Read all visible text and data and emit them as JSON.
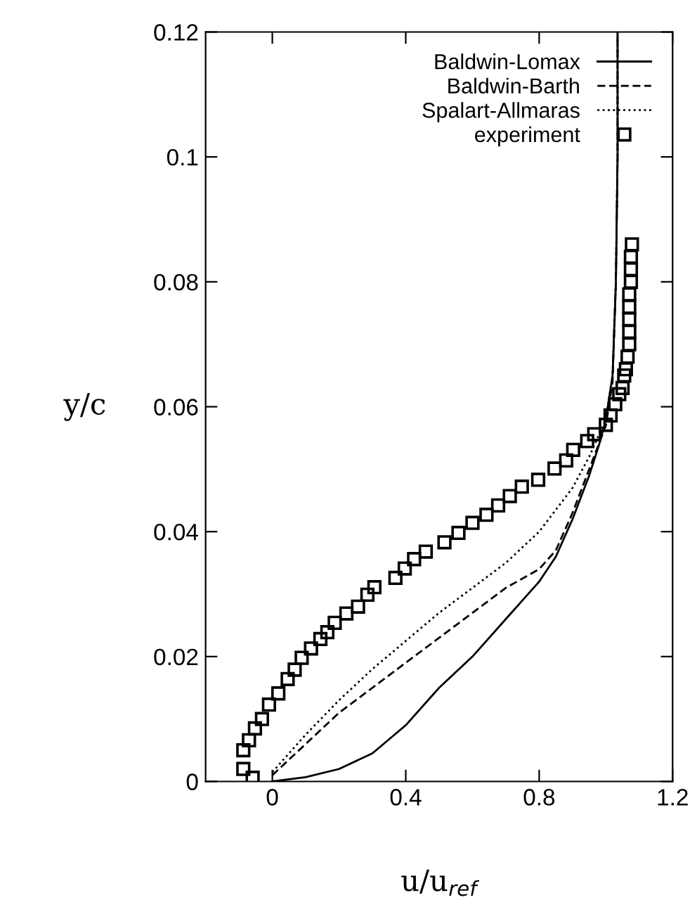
{
  "chart_data": {
    "type": "line",
    "xlabel": "u/u$_{ref}$",
    "ylabel": "y/c",
    "xlim": [
      -0.2,
      1.2
    ],
    "ylim": [
      0,
      0.12
    ],
    "xticks": [
      0,
      0.4,
      0.8,
      1.2
    ],
    "yticks": [
      0,
      0.02,
      0.04,
      0.06,
      0.08,
      0.1,
      0.12
    ],
    "legend": "top right",
    "grid": false,
    "series": [
      {
        "name": "Baldwin-Lomax",
        "color": "#000000",
        "line_style": "solid",
        "marker": "none",
        "x": [
          0,
          0.1,
          0.2,
          0.3,
          0.4,
          0.5,
          0.6,
          0.7,
          0.8,
          0.85,
          0.9,
          0.95,
          0.98,
          1.0,
          1.02,
          1.03,
          1.035,
          1.035
        ],
        "values": [
          0,
          0.0007,
          0.002,
          0.0045,
          0.009,
          0.015,
          0.02,
          0.026,
          0.032,
          0.036,
          0.042,
          0.049,
          0.054,
          0.058,
          0.065,
          0.08,
          0.1,
          0.12
        ]
      },
      {
        "name": "Baldwin-Barth",
        "color": "#000000",
        "line_style": "dashed",
        "marker": "none",
        "x": [
          0,
          0.1,
          0.2,
          0.3,
          0.4,
          0.5,
          0.6,
          0.7,
          0.8,
          0.85,
          0.9,
          0.95,
          1.0,
          1.02,
          1.03,
          1.035,
          1.035
        ],
        "values": [
          0.001,
          0.006,
          0.011,
          0.015,
          0.019,
          0.023,
          0.027,
          0.031,
          0.034,
          0.037,
          0.043,
          0.05,
          0.057,
          0.064,
          0.08,
          0.1,
          0.12
        ]
      },
      {
        "name": "Spalart-Allmaras",
        "color": "#000000",
        "line_style": "dotted",
        "marker": "none",
        "x": [
          0,
          0.1,
          0.2,
          0.3,
          0.4,
          0.5,
          0.6,
          0.7,
          0.8,
          0.9,
          0.95,
          1.0,
          1.02,
          1.03,
          1.035,
          1.035
        ],
        "values": [
          0.0015,
          0.0075,
          0.013,
          0.018,
          0.0225,
          0.027,
          0.031,
          0.035,
          0.04,
          0.047,
          0.052,
          0.058,
          0.065,
          0.08,
          0.1,
          0.12
        ]
      },
      {
        "name": "experiment",
        "type": "scatter",
        "color": "#000000",
        "marker": "square",
        "x": [
          -0.059,
          -0.087,
          -0.087,
          -0.07,
          -0.052,
          -0.031,
          -0.01,
          0.018,
          0.046,
          0.067,
          0.088,
          0.116,
          0.144,
          0.165,
          0.187,
          0.222,
          0.257,
          0.285,
          0.306,
          0.369,
          0.397,
          0.425,
          0.46,
          0.516,
          0.558,
          0.6,
          0.642,
          0.677,
          0.712,
          0.748,
          0.797,
          0.846,
          0.881,
          0.902,
          0.944,
          0.965,
          1.0,
          1.014,
          1.028,
          1.04,
          1.05,
          1.055,
          1.06,
          1.065,
          1.07,
          1.07,
          1.07,
          1.07,
          1.07,
          1.075,
          1.075,
          1.075,
          1.078
        ],
        "values": [
          0.0006,
          0.002,
          0.005,
          0.0066,
          0.0085,
          0.01,
          0.0123,
          0.0141,
          0.0164,
          0.0179,
          0.0198,
          0.0213,
          0.0228,
          0.0239,
          0.0254,
          0.0269,
          0.028,
          0.0299,
          0.0311,
          0.0326,
          0.0341,
          0.0356,
          0.0368,
          0.0383,
          0.0398,
          0.0414,
          0.0427,
          0.0442,
          0.0457,
          0.0472,
          0.0483,
          0.0501,
          0.0514,
          0.0531,
          0.0545,
          0.0556,
          0.0571,
          0.0586,
          0.0604,
          0.062,
          0.063,
          0.065,
          0.066,
          0.068,
          0.07,
          0.072,
          0.074,
          0.076,
          0.078,
          0.08,
          0.082,
          0.084,
          0.086
        ]
      }
    ]
  }
}
